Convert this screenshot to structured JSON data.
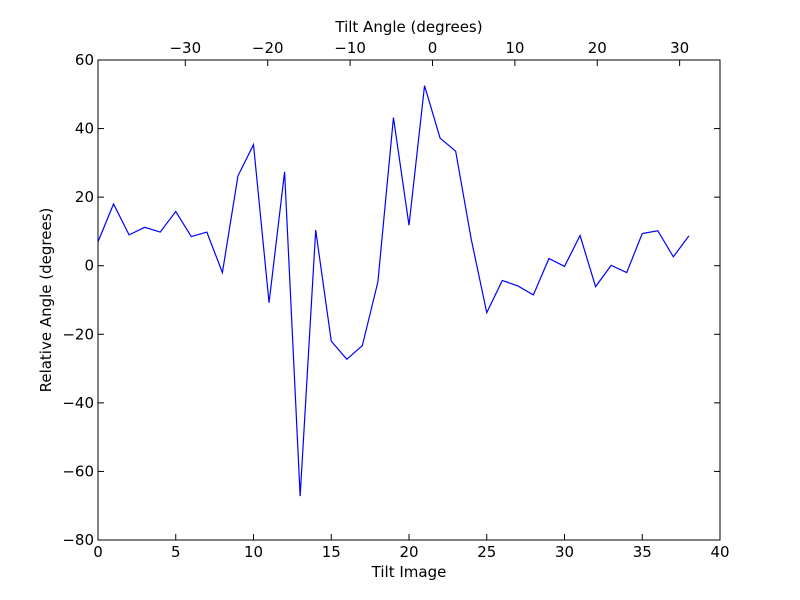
{
  "chart_data": {
    "type": "line",
    "title": "",
    "xlabel": "Tilt Image",
    "ylabel": "Relative Angle (degrees)",
    "top_xlabel": "Tilt Angle (degrees)",
    "xlim": [
      0,
      40
    ],
    "ylim": [
      -80,
      60
    ],
    "top_xlim": [
      -40.6,
      34.9
    ],
    "x_ticks": [
      0,
      5,
      10,
      15,
      20,
      25,
      30,
      35,
      40
    ],
    "x_tick_labels": [
      "0",
      "5",
      "10",
      "15",
      "20",
      "25",
      "30",
      "35",
      "40"
    ],
    "y_ticks": [
      -80,
      -60,
      -40,
      -20,
      0,
      20,
      40,
      60
    ],
    "y_tick_labels": [
      "−80",
      "−60",
      "−40",
      "−20",
      "0",
      "20",
      "40",
      "60"
    ],
    "top_x_ticks": [
      -30,
      -20,
      -10,
      0,
      10,
      20,
      30
    ],
    "top_x_tick_labels": [
      "−30",
      "−20",
      "−10",
      "0",
      "10",
      "20",
      "30"
    ],
    "grid": false,
    "line_color": "#0000ff",
    "series": [
      {
        "x": [
          0,
          1,
          2,
          3,
          4,
          5,
          6,
          7,
          8,
          9,
          10,
          11,
          12,
          13,
          14,
          15,
          16,
          17,
          18,
          19,
          20,
          21,
          22,
          23,
          24,
          25,
          26,
          27,
          28,
          29,
          30,
          31,
          32,
          33,
          34,
          35,
          36,
          37,
          38
        ],
        "values": [
          7,
          18,
          9,
          11.2,
          9.8,
          15.8,
          8.5,
          9.8,
          -2,
          26.2,
          35.3,
          -10.8,
          27.4,
          -67.2,
          10.4,
          -22,
          -27.3,
          -23.3,
          -4.7,
          43.2,
          11.8,
          52.5,
          37.2,
          33.4,
          7.8,
          -13.7,
          -4.3,
          -5.9,
          -8.5,
          2.1,
          -0.2,
          8.8,
          -6.1,
          0.1,
          -2,
          9.4,
          10.2,
          2.6,
          8.7
        ]
      }
    ]
  }
}
